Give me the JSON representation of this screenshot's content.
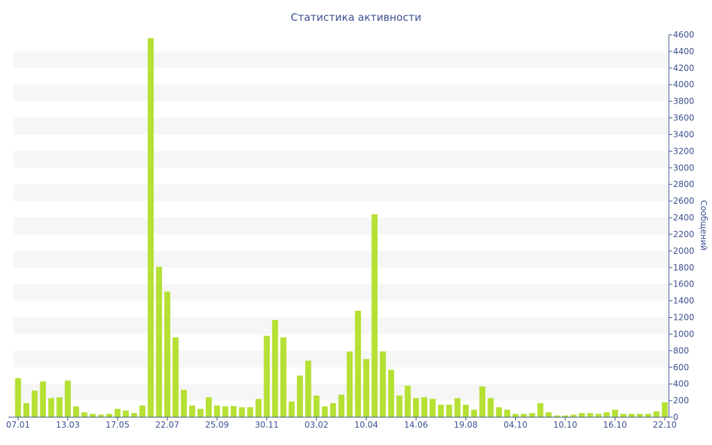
{
  "chart_data": {
    "type": "bar",
    "title": "Статистика активности",
    "ylabel": "Сообщений",
    "xlabel": "",
    "ylim": [
      0,
      4600
    ],
    "y_ticks": [
      0,
      200,
      400,
      600,
      800,
      1000,
      1200,
      1400,
      1600,
      1800,
      2000,
      2200,
      2400,
      2600,
      2800,
      3000,
      3200,
      3400,
      3600,
      3800,
      4000,
      4200,
      4400,
      4600
    ],
    "y_axis_position": "right",
    "grid": "horizontal alternating bands",
    "x_tick_labels": [
      {
        "index": 0,
        "label": "07.01"
      },
      {
        "index": 6,
        "label": "13.03"
      },
      {
        "index": 12,
        "label": "17.05"
      },
      {
        "index": 18,
        "label": "22.07"
      },
      {
        "index": 24,
        "label": "25.09"
      },
      {
        "index": 30,
        "label": "30.11"
      },
      {
        "index": 36,
        "label": "03.02"
      },
      {
        "index": 42,
        "label": "10.04"
      },
      {
        "index": 48,
        "label": "14.06"
      },
      {
        "index": 54,
        "label": "19.08"
      },
      {
        "index": 60,
        "label": "04.10"
      },
      {
        "index": 66,
        "label": "10.10"
      },
      {
        "index": 72,
        "label": "16.10"
      },
      {
        "index": 78,
        "label": "22.10"
      }
    ],
    "values": [
      470,
      170,
      320,
      430,
      230,
      240,
      440,
      130,
      60,
      40,
      30,
      40,
      100,
      80,
      50,
      140,
      4560,
      1810,
      1510,
      960,
      330,
      140,
      100,
      240,
      140,
      130,
      135,
      120,
      120,
      220,
      980,
      1170,
      960,
      190,
      500,
      680,
      260,
      130,
      170,
      270,
      790,
      1280,
      700,
      2440,
      790,
      570,
      260,
      380,
      230,
      240,
      220,
      150,
      150,
      230,
      150,
      90,
      370,
      230,
      120,
      90,
      40,
      40,
      50,
      170,
      60,
      20,
      20,
      30,
      50,
      50,
      40,
      60,
      90,
      40,
      40,
      40,
      40,
      70,
      180
    ],
    "last_bar_highlight": 80,
    "colors": {
      "bar": "#b5e034",
      "highlight": "#e05a2b",
      "text": "#3b4f8f",
      "band": "#f6f6f6",
      "axis": "#3b4f8f"
    }
  }
}
